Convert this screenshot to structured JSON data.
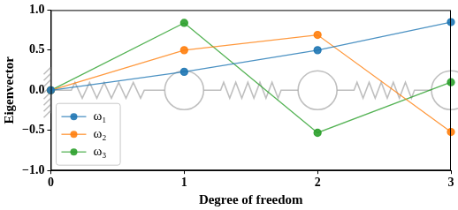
{
  "chart_data": {
    "type": "line",
    "x_label": "Degree of freedom",
    "y_label": "Eigenvector",
    "x": [
      0,
      1,
      2,
      3
    ],
    "series": [
      {
        "name": "ω₁",
        "color": "#1f77b4",
        "values": [
          0,
          0.23,
          0.5,
          0.85
        ],
        "marker": "circle",
        "line_style": "solid"
      },
      {
        "name": "ω₂",
        "color": "#ff7f0e",
        "values": [
          0,
          0.5,
          0.69,
          -0.52
        ],
        "marker": "circle",
        "line_style": "solid"
      },
      {
        "name": "ω₃",
        "color": "#2ca02c",
        "values": [
          0,
          0.84,
          -0.53,
          0.1
        ],
        "marker": "circle",
        "line_style": "solid"
      }
    ],
    "xlim": [
      0,
      3
    ],
    "xticks": [
      0,
      1,
      2,
      3
    ],
    "ylim": [
      -1,
      1
    ],
    "yticks": [
      {
        "value": -1,
        "label": "−1.0"
      },
      {
        "value": -0.5,
        "label": "−0.5"
      },
      {
        "value": 0,
        "label": "0.0"
      },
      {
        "value": 0.5,
        "label": "0.5"
      },
      {
        "value": 1,
        "label": "1.0"
      }
    ],
    "grid": false,
    "legend": "lower left"
  }
}
